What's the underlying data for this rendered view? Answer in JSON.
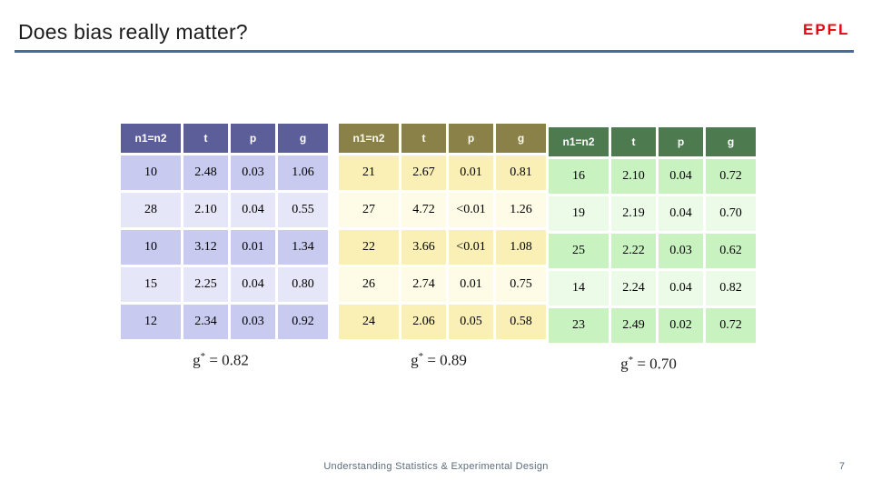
{
  "slide": {
    "title": "Does bias really matter?",
    "logo_text": "EPFL",
    "footer": "Understanding Statistics & Experimental Design",
    "page_number": "7"
  },
  "colors": {
    "title_underline": "#4A699C",
    "logo_red": "#E30613",
    "footer_text": "#5A6B7C"
  },
  "chart_data": [
    {
      "type": "table",
      "name": "simulation-set-1",
      "columns": [
        "n1=n2",
        "t",
        "p",
        "g"
      ],
      "rows": [
        [
          "10",
          "2.48",
          "0.03",
          "1.06"
        ],
        [
          "28",
          "2.10",
          "0.04",
          "0.55"
        ],
        [
          "10",
          "3.12",
          "0.01",
          "1.34"
        ],
        [
          "15",
          "2.25",
          "0.04",
          "0.80"
        ],
        [
          "12",
          "2.34",
          "0.03",
          "0.92"
        ]
      ],
      "summary": {
        "base": "g",
        "sup": "*",
        "rest": " = 0.82"
      },
      "colors": {
        "header": "#5C5E99",
        "band_dark": "#C8CAEF",
        "band_light": "#E5E6F7",
        "header_text": "#FFFFFF"
      }
    },
    {
      "type": "table",
      "name": "simulation-set-2",
      "columns": [
        "n1=n2",
        "t",
        "p",
        "g"
      ],
      "rows": [
        [
          "21",
          "2.67",
          "0.01",
          "0.81"
        ],
        [
          "27",
          "4.72",
          "<0.01",
          "1.26"
        ],
        [
          "22",
          "3.66",
          "<0.01",
          "1.08"
        ],
        [
          "26",
          "2.74",
          "0.01",
          "0.75"
        ],
        [
          "24",
          "2.06",
          "0.05",
          "0.58"
        ]
      ],
      "summary": {
        "base": "g",
        "sup": "*",
        "rest": " = 0.89"
      },
      "colors": {
        "header": "#8A8149",
        "band_dark": "#FAF0B5",
        "band_light": "#FEFBE6",
        "header_text": "#FCFAF0"
      }
    },
    {
      "type": "table",
      "name": "simulation-set-3",
      "columns": [
        "n1=n2",
        "t",
        "p",
        "g"
      ],
      "rows": [
        [
          "16",
          "2.10",
          "0.04",
          "0.72"
        ],
        [
          "19",
          "2.19",
          "0.04",
          "0.70"
        ],
        [
          "25",
          "2.22",
          "0.03",
          "0.62"
        ],
        [
          "14",
          "2.24",
          "0.04",
          "0.82"
        ],
        [
          "23",
          "2.49",
          "0.02",
          "0.72"
        ]
      ],
      "summary": {
        "base": "g",
        "sup": "*",
        "rest": " = 0.70"
      },
      "colors": {
        "header": "#4E7A4F",
        "band_dark": "#C9F2C1",
        "band_light": "#EBFBE7",
        "header_text": "#FFFFFF"
      }
    }
  ]
}
